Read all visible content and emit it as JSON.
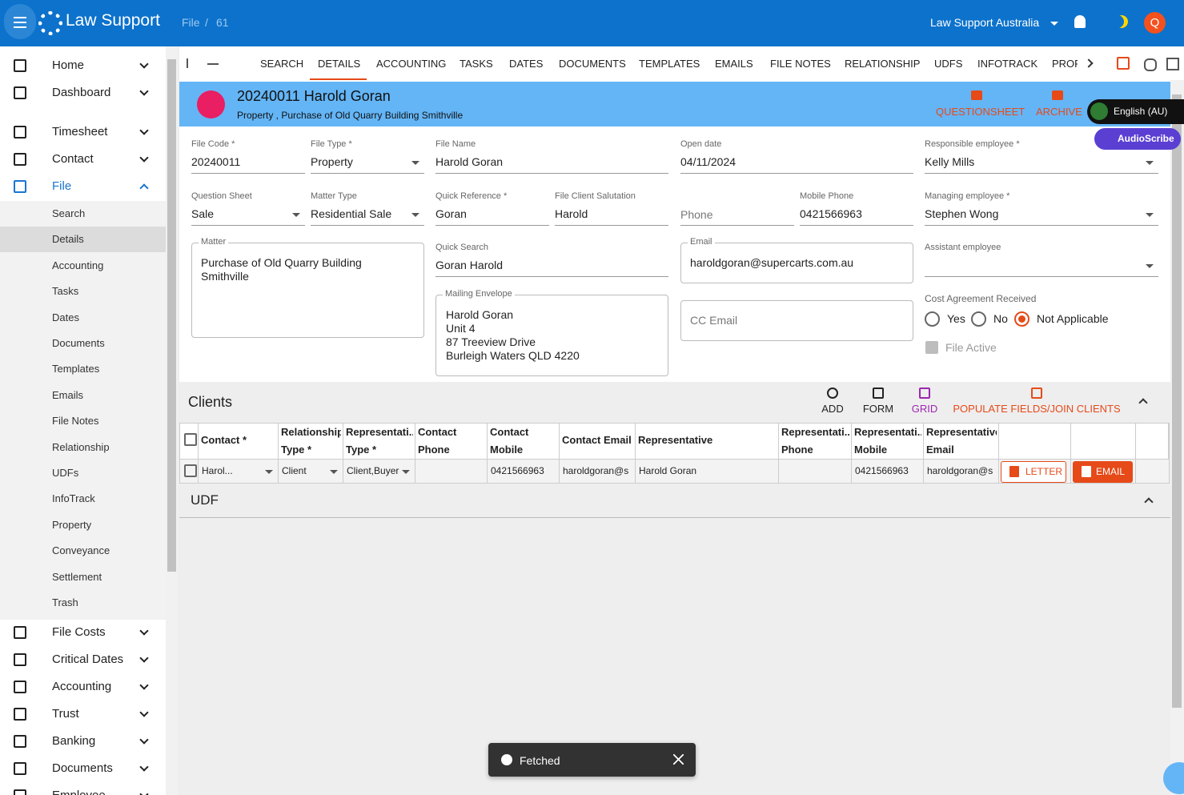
{
  "header": {
    "brand": "Law Support",
    "breadcrumb": [
      "File",
      "61"
    ],
    "breadcrumb_separator": "/",
    "organization": "Law Support Australia",
    "avatar": "Q"
  },
  "sidebar": {
    "items": [
      {
        "label": "Home"
      },
      {
        "label": "Dashboard",
        "divider_after": true
      },
      {
        "label": "Timesheet"
      },
      {
        "label": "Contact"
      },
      {
        "label": "File",
        "expanded": true,
        "children": [
          {
            "label": "Search"
          },
          {
            "label": "Details",
            "selected": true
          },
          {
            "label": "Accounting"
          },
          {
            "label": "Tasks"
          },
          {
            "label": "Dates"
          },
          {
            "label": "Documents"
          },
          {
            "label": "Templates"
          },
          {
            "label": "Emails"
          },
          {
            "label": "File Notes"
          },
          {
            "label": "Relationship"
          },
          {
            "label": "UDFs"
          },
          {
            "label": "InfoTrack"
          },
          {
            "label": "Property"
          },
          {
            "label": "Conveyance"
          },
          {
            "label": "Settlement"
          },
          {
            "label": "Trash"
          }
        ]
      },
      {
        "label": "File Costs"
      },
      {
        "label": "Critical Dates"
      },
      {
        "label": "Accounting"
      },
      {
        "label": "Trust"
      },
      {
        "label": "Banking"
      },
      {
        "label": "Documents"
      },
      {
        "label": "Employee"
      }
    ]
  },
  "tabs": [
    {
      "label": "SEARCH"
    },
    {
      "label": "DETAILS",
      "active": true
    },
    {
      "label": "ACCOUNTING"
    },
    {
      "label": "TASKS"
    },
    {
      "label": "DATES"
    },
    {
      "label": "DOCUMENTS"
    },
    {
      "label": "TEMPLATES"
    },
    {
      "label": "EMAILS"
    },
    {
      "label": "FILE NOTES"
    },
    {
      "label": "RELATIONSHIP"
    },
    {
      "label": "UDFS"
    },
    {
      "label": "INFOTRACK"
    },
    {
      "label": "PROF"
    }
  ],
  "file": {
    "title": "20240011 Harold Goran",
    "subtitle": "Property , Purchase of Old Quarry Building Smithville",
    "actions": [
      "QUESTIONSHEET",
      "ARCHIVE"
    ]
  },
  "widgets": {
    "language": "English (AU)",
    "audioscribe": "AudioScribe"
  },
  "fields": [
    {
      "label": "File Code *",
      "value": "20240011"
    },
    {
      "label": "File Type *",
      "value": "Property",
      "dropdown": true
    },
    {
      "label": "File Name",
      "value": "Harold Goran"
    },
    {
      "label": "Open date",
      "value": "04/11/2024"
    },
    {
      "label": "Responsible employee *",
      "value": "Kelly Mills",
      "dropdown": true
    },
    {
      "label": "Question Sheet",
      "value": "Sale",
      "dropdown": true
    },
    {
      "label": "Matter Type",
      "value": "Residential Sale",
      "dropdown": true
    },
    {
      "label": "Quick Reference *",
      "value": "Goran"
    },
    {
      "label": "File Client Salutation",
      "value": "Harold"
    },
    {
      "placeholder": "Phone"
    },
    {
      "label": "Mobile Phone",
      "value": "0421566963"
    },
    {
      "label": "Managing employee *",
      "value": "Stephen Wong",
      "dropdown": true
    },
    {
      "label": "Quick Search",
      "value": "Goran Harold"
    },
    {
      "label": "Assistant employee",
      "dropdown": true
    }
  ],
  "matter": {
    "label": "Matter",
    "value": "Purchase of Old Quarry Building Smithville"
  },
  "email": {
    "label": "Email",
    "value": "haroldgoran@supercarts.com.au"
  },
  "mailing_envelope": {
    "label": "Mailing Envelope",
    "lines": [
      "Harold Goran",
      "Unit 4",
      "87 Treeview Drive",
      "Burleigh Waters QLD 4220"
    ]
  },
  "cc_email": {
    "placeholder": "CC Email"
  },
  "cost_agreement": {
    "label": "Cost Agreement Received",
    "options": [
      {
        "label": "Yes"
      },
      {
        "label": "No"
      },
      {
        "label": "Not Applicable",
        "selected": true
      }
    ]
  },
  "file_active": {
    "label": "File Active",
    "checked": true
  },
  "clients": {
    "title": "Clients",
    "actions": [
      {
        "label": "ADD"
      },
      {
        "label": "FORM"
      },
      {
        "label": "GRID",
        "color": "#9c27b0"
      },
      {
        "label": "POPULATE FIELDS/JOIN CLIENTS",
        "color": "#e64a19"
      }
    ],
    "columns": [
      [
        "Contact *"
      ],
      [
        "Relationship",
        "Type *"
      ],
      [
        "Representati...",
        "Type *"
      ],
      [
        "Contact",
        "Phone"
      ],
      [
        "Contact",
        "Mobile"
      ],
      [
        "Contact Email"
      ],
      [
        "Representative"
      ],
      [
        "Representati...",
        "Phone"
      ],
      [
        "Representati...",
        "Mobile"
      ],
      [
        "Representative",
        "Email"
      ]
    ],
    "rows": [
      [
        "Harol...",
        "Client",
        "Client,Buyer",
        null,
        "0421566963",
        "haroldgoran@s",
        "Harold Goran",
        null,
        "0421566963",
        "haroldgoran@s"
      ]
    ],
    "row_actions": [
      "LETTER",
      "EMAIL"
    ]
  },
  "udf": {
    "title": "UDF"
  },
  "toast": {
    "message": "Fetched"
  }
}
